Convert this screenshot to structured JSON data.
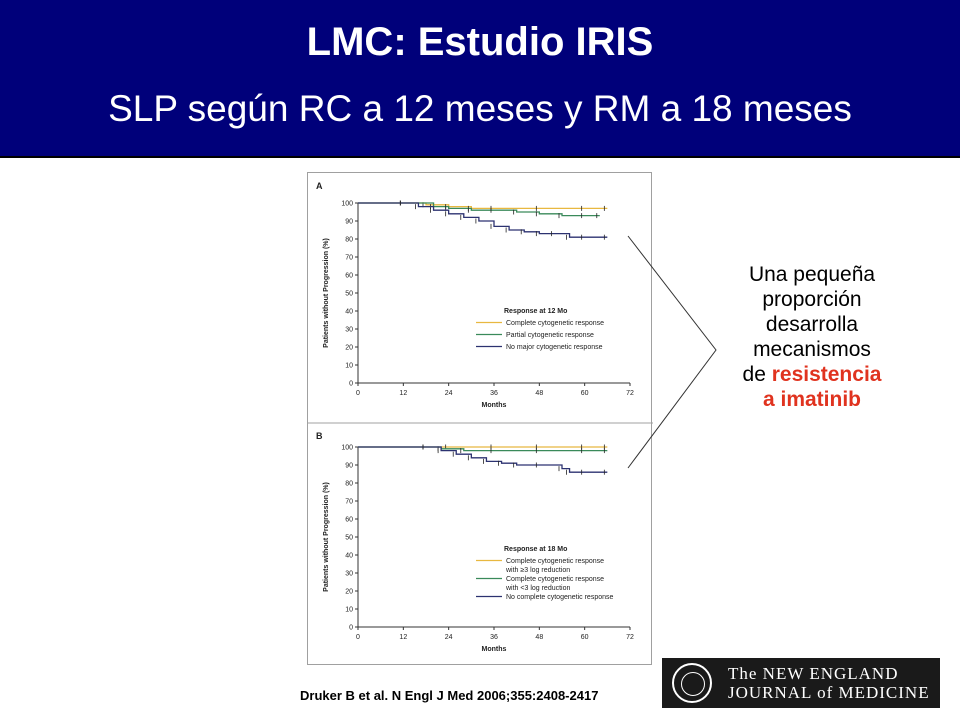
{
  "header": {
    "title": "LMC: Estudio IRIS",
    "subtitle": "SLP según RC a 12 meses y RM a 18 meses"
  },
  "side_text": {
    "line1": "Una pequeña",
    "line2": "proporción",
    "line3": "desarrolla",
    "line4": "mecanismos",
    "line5_prefix": "de ",
    "line5_highlight": "resistencia",
    "line6_highlight": "a imatinib",
    "highlight_color": "#e0331f"
  },
  "citation": "Druker B et al. N Engl J Med 2006;355:2408-2417",
  "logo": {
    "line1": "The NEW ENGLAND",
    "line2": "JOURNAL of MEDICINE"
  },
  "colors": {
    "header_bg": "#00007a",
    "complete": "#e8b840",
    "partial": "#3a8a5a",
    "none": "#2c3270"
  },
  "chart_data": [
    {
      "type": "line",
      "panel": "A",
      "xlabel": "Months",
      "ylabel": "Patients without Progression (%)",
      "xticks": [
        0,
        12,
        24,
        36,
        48,
        60,
        72
      ],
      "yticks": [
        0,
        10,
        20,
        30,
        40,
        50,
        60,
        70,
        80,
        90,
        100
      ],
      "xlim": [
        0,
        72
      ],
      "ylim": [
        0,
        100
      ],
      "legend_title": "Response at 12 Mo",
      "legend_position": "lower-right",
      "series": [
        {
          "name": "Complete cytogenetic response",
          "color": "#e8b840",
          "x": [
            0,
            12,
            18,
            24,
            30,
            36,
            48,
            60,
            66
          ],
          "y": [
            100,
            100,
            99,
            98,
            97,
            97,
            97,
            97,
            97
          ]
        },
        {
          "name": "Partial cytogenetic response",
          "color": "#3a8a5a",
          "x": [
            0,
            12,
            20,
            24,
            30,
            36,
            42,
            48,
            54,
            60,
            64
          ],
          "y": [
            100,
            100,
            98,
            97,
            96,
            96,
            95,
            94,
            93,
            93,
            93
          ]
        },
        {
          "name": "No major cytogenetic response",
          "color": "#2c3270",
          "x": [
            0,
            12,
            16,
            20,
            24,
            28,
            32,
            36,
            40,
            44,
            48,
            52,
            56,
            60,
            66
          ],
          "y": [
            100,
            100,
            98,
            96,
            94,
            92,
            90,
            87,
            85,
            84,
            83,
            83,
            81,
            81,
            81
          ]
        }
      ]
    },
    {
      "type": "line",
      "panel": "B",
      "xlabel": "Months",
      "ylabel": "Patients without Progression (%)",
      "xticks": [
        0,
        12,
        24,
        36,
        48,
        60,
        72
      ],
      "yticks": [
        0,
        10,
        20,
        30,
        40,
        50,
        60,
        70,
        80,
        90,
        100
      ],
      "xlim": [
        0,
        72
      ],
      "ylim": [
        0,
        100
      ],
      "legend_title": "Response at 18 Mo",
      "legend_position": "lower-right",
      "series": [
        {
          "name": "Complete cytogenetic response with ≥3 log reduction",
          "color": "#e8b840",
          "x": [
            0,
            18,
            24,
            36,
            48,
            60,
            66
          ],
          "y": [
            100,
            100,
            100,
            100,
            100,
            100,
            100
          ]
        },
        {
          "name": "Complete cytogenetic response with <3 log reduction",
          "color": "#3a8a5a",
          "x": [
            0,
            18,
            22,
            28,
            36,
            48,
            60,
            66
          ],
          "y": [
            100,
            100,
            99,
            98,
            98,
            98,
            98,
            98
          ]
        },
        {
          "name": "No complete cytogenetic response",
          "color": "#2c3270",
          "x": [
            0,
            18,
            22,
            26,
            30,
            34,
            38,
            42,
            48,
            54,
            56,
            60,
            66
          ],
          "y": [
            100,
            100,
            98,
            96,
            94,
            92,
            91,
            90,
            90,
            88,
            86,
            86,
            86
          ]
        }
      ]
    }
  ]
}
